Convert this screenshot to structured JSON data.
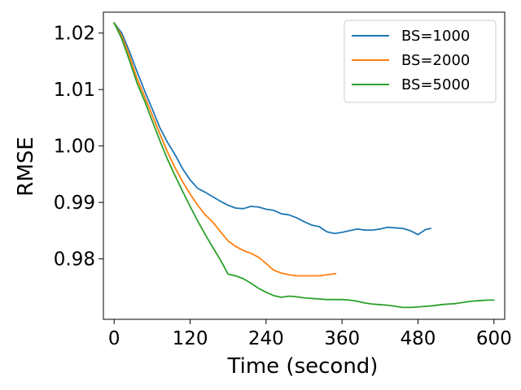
{
  "chart_data": {
    "type": "line",
    "xlabel": "Time (second)",
    "ylabel": "RMSE",
    "xlim": [
      -17,
      617
    ],
    "ylim": [
      0.9693,
      1.0237
    ],
    "xticks": [
      0,
      120,
      240,
      360,
      480,
      600
    ],
    "yticks": [
      0.98,
      0.99,
      1.0,
      1.01,
      1.02
    ],
    "ytick_labels": [
      "0.98",
      "0.99",
      "1.00",
      "1.01",
      "1.02"
    ],
    "grid": false,
    "legend_position": "top-right",
    "series": [
      {
        "name": "BS=1000",
        "color": "#1f77b4",
        "x": [
          0,
          12,
          24,
          36,
          48,
          60,
          72,
          84,
          96,
          108,
          120,
          132,
          144,
          156,
          168,
          180,
          192,
          204,
          216,
          228,
          240,
          252,
          264,
          276,
          288,
          300,
          312,
          324,
          336,
          348,
          360,
          372,
          384,
          396,
          408,
          420,
          432,
          444,
          456,
          468,
          480,
          492,
          500
        ],
        "y": [
          1.0218,
          1.02,
          1.0168,
          1.0132,
          1.0098,
          1.0066,
          1.0033,
          1.0007,
          0.9985,
          0.996,
          0.994,
          0.9925,
          0.9918,
          0.991,
          0.9902,
          0.9895,
          0.989,
          0.9889,
          0.9893,
          0.9892,
          0.9888,
          0.9886,
          0.988,
          0.9878,
          0.9873,
          0.9866,
          0.986,
          0.9857,
          0.9848,
          0.9845,
          0.9847,
          0.985,
          0.9853,
          0.9851,
          0.9851,
          0.9853,
          0.9856,
          0.9855,
          0.9854,
          0.985,
          0.9843,
          0.9852,
          0.9854
        ]
      },
      {
        "name": "BS=2000",
        "color": "#ff7f0e",
        "x": [
          0,
          12,
          24,
          36,
          48,
          60,
          72,
          84,
          96,
          108,
          120,
          132,
          144,
          156,
          168,
          180,
          192,
          204,
          216,
          228,
          240,
          252,
          264,
          276,
          288,
          300,
          312,
          324,
          336,
          350
        ],
        "y": [
          1.0218,
          1.0195,
          1.016,
          1.012,
          1.0088,
          1.0055,
          1.0022,
          0.999,
          0.9962,
          0.9937,
          0.9915,
          0.9895,
          0.9878,
          0.9865,
          0.9848,
          0.9832,
          0.9822,
          0.9815,
          0.981,
          0.9803,
          0.9792,
          0.978,
          0.9775,
          0.9772,
          0.977,
          0.977,
          0.977,
          0.977,
          0.9772,
          0.9774
        ]
      },
      {
        "name": "BS=5000",
        "color": "#2ca02c",
        "x": [
          0,
          12,
          24,
          36,
          48,
          60,
          72,
          84,
          96,
          108,
          120,
          132,
          144,
          156,
          168,
          180,
          192,
          204,
          216,
          228,
          240,
          252,
          264,
          276,
          288,
          300,
          312,
          324,
          336,
          348,
          360,
          372,
          384,
          396,
          408,
          420,
          432,
          444,
          456,
          468,
          480,
          492,
          504,
          516,
          528,
          540,
          552,
          564,
          576,
          588,
          600
        ],
        "y": [
          1.0218,
          1.019,
          1.0152,
          1.0112,
          1.008,
          1.0045,
          1.001,
          0.9977,
          0.9948,
          0.992,
          0.9893,
          0.9867,
          0.9843,
          0.982,
          0.9798,
          0.9773,
          0.977,
          0.9765,
          0.9757,
          0.9748,
          0.9741,
          0.9735,
          0.9732,
          0.9734,
          0.9733,
          0.9731,
          0.973,
          0.9729,
          0.9728,
          0.9728,
          0.9728,
          0.9727,
          0.9725,
          0.9722,
          0.972,
          0.9719,
          0.9718,
          0.9716,
          0.9714,
          0.9714,
          0.9715,
          0.9716,
          0.9717,
          0.9719,
          0.972,
          0.9721,
          0.9723,
          0.9725,
          0.9726,
          0.9727,
          0.9727
        ]
      }
    ]
  }
}
